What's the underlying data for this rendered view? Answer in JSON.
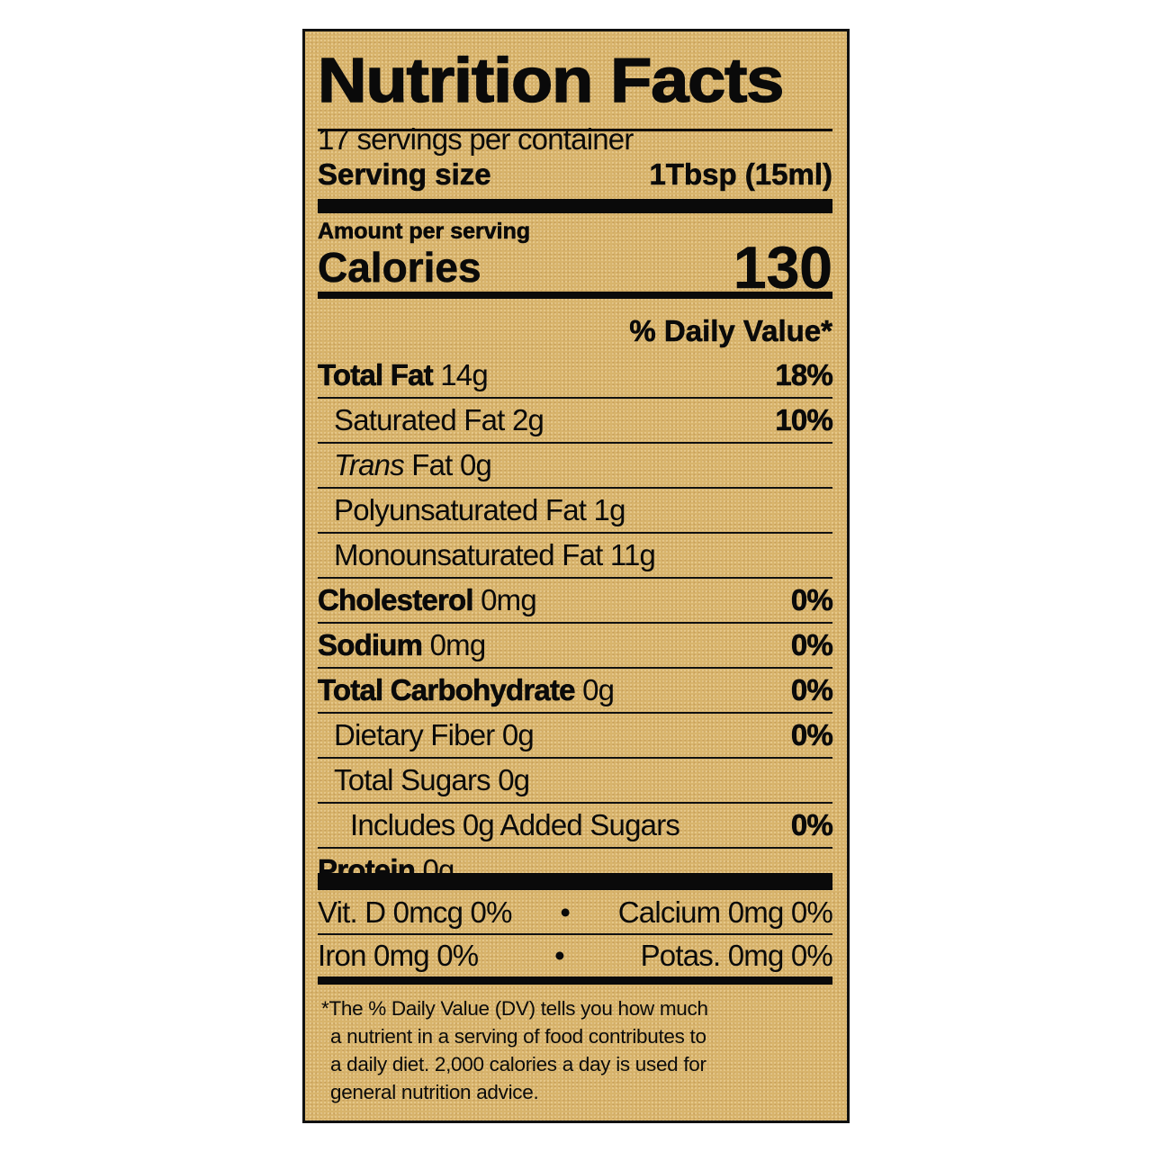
{
  "title": "Nutrition Facts",
  "servings_per_container": "17 servings per container",
  "serving_size": {
    "label": "Serving size",
    "value": "1Tbsp (15ml)"
  },
  "amount_per_serving": "Amount per serving",
  "calories": {
    "label": "Calories",
    "value": "130"
  },
  "daily_value_header": "% Daily Value*",
  "nutrients": [
    {
      "name": "Total Fat",
      "amount": "14g",
      "dv": "18%",
      "bold": true,
      "indent": 0
    },
    {
      "name": "Saturated Fat",
      "amount": "2g",
      "dv": "10%",
      "bold": false,
      "indent": 1
    },
    {
      "name": "Trans",
      "name_suffix": " Fat",
      "amount": "0g",
      "dv": "",
      "bold": false,
      "indent": 1
    },
    {
      "name": "Polyunsaturated Fat",
      "amount": "1g",
      "dv": "",
      "bold": false,
      "indent": 1
    },
    {
      "name": "Monounsaturated Fat",
      "amount": "11g",
      "dv": "",
      "bold": false,
      "indent": 1
    },
    {
      "name": "Cholesterol",
      "amount": "0mg",
      "dv": "0%",
      "bold": true,
      "indent": 0
    },
    {
      "name": "Sodium",
      "amount": "0mg",
      "dv": "0%",
      "bold": true,
      "indent": 0
    },
    {
      "name": "Total Carbohydrate",
      "amount": "0g",
      "dv": "0%",
      "bold": true,
      "indent": 0
    },
    {
      "name": "Dietary Fiber",
      "amount": "0g",
      "dv": "0%",
      "bold": false,
      "indent": 1
    },
    {
      "name": "Total Sugars",
      "amount": "0g",
      "dv": "",
      "bold": false,
      "indent": 1
    },
    {
      "name": "Includes 0g Added Sugars",
      "amount": "",
      "dv": "0%",
      "bold": false,
      "indent": 2
    },
    {
      "name": "Protein",
      "amount": "0g",
      "dv": "",
      "bold": true,
      "indent": 0
    }
  ],
  "vitamins": [
    {
      "left": "Vit. D 0mcg 0%",
      "sep": "•",
      "right": "Calcium 0mg 0%"
    },
    {
      "left": "Iron 0mg 0%",
      "sep": "•",
      "right": "Potas. 0mg 0%"
    }
  ],
  "footnote": [
    "*The % Daily Value (DV) tells you how much",
    "a nutrient in a serving of food contributes to",
    "a daily diet. 2,000 calories a day is used for",
    "general nutrition advice."
  ],
  "colors": {
    "background": "#d8b46c",
    "ink": "#0a0a0a"
  }
}
